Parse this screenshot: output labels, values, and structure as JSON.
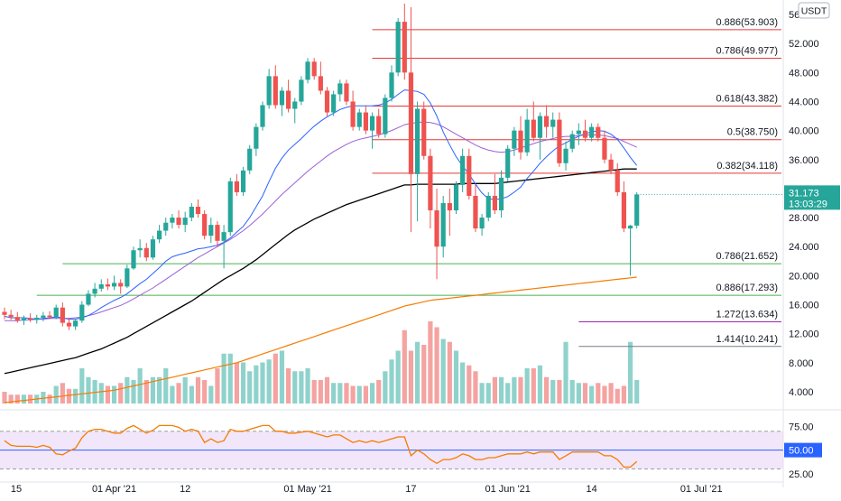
{
  "currency_label": "USDT",
  "colors": {
    "up": "#26a69a",
    "down": "#ef5350",
    "up_vol": "#8fd2cc",
    "down_vol": "#f4a3a1",
    "fib_red": "#e53935",
    "fib_green": "#4caf50",
    "fib_purple": "#9c27b0",
    "fib_gray": "#787b86",
    "ma_fast": "#2962ff",
    "ma_mid": "#9c5fd6",
    "ma_black": "#000000",
    "ma_orange": "#f57c00",
    "rsi_line": "#f57c00",
    "rsi_band": "#e9d5f7",
    "rsi_mid": "#2962ff",
    "price_tag": "#26a69a",
    "rsi_tag": "#2962ff"
  },
  "price_tag": {
    "price": "31.173",
    "countdown": "13:03:29"
  },
  "rsi_tag": "50.00",
  "chart_data": {
    "type": "candlestick",
    "price_axis": {
      "range": [
        2.0,
        58.0
      ],
      "ticks": [
        "56.000",
        "52.000",
        "48.000",
        "44.000",
        "40.000",
        "36.000",
        "32.000",
        "28.000",
        "24.000",
        "20.000",
        "16.000",
        "12.000",
        "8.000",
        "4.000"
      ]
    },
    "rsi_axis": {
      "range": [
        20,
        85
      ],
      "ticks": [
        "75.00",
        "50.00",
        "25.00"
      ],
      "band": [
        30,
        70
      ],
      "mid": 50
    },
    "x_axis": {
      "labels": [
        {
          "text": "15",
          "day": 0
        },
        {
          "text": "01 Apr '21",
          "day": 17
        },
        {
          "text": "12",
          "day": 28
        },
        {
          "text": "01 May '21",
          "day": 47
        },
        {
          "text": "17",
          "day": 63
        },
        {
          "text": "01 Jun '21",
          "day": 78
        },
        {
          "text": "14",
          "day": 91
        },
        {
          "text": "01 Jul '21",
          "day": 108
        }
      ]
    },
    "fib_levels": [
      {
        "label": "0.886(53.903)",
        "value": 53.903,
        "color": "red",
        "from_day": 57
      },
      {
        "label": "0.786(49.977)",
        "value": 49.977,
        "color": "red",
        "from_day": 57
      },
      {
        "label": "0.618(43.382)",
        "value": 43.382,
        "color": "red",
        "from_day": 57
      },
      {
        "label": "0.5(38.750)",
        "value": 38.75,
        "color": "red",
        "from_day": 57
      },
      {
        "label": "0.382(34.118)",
        "value": 34.118,
        "color": "red",
        "from_day": 57
      },
      {
        "label": "0.786(21.652)",
        "value": 21.652,
        "color": "green",
        "from_day": 9
      },
      {
        "label": "0.886(17.293)",
        "value": 17.293,
        "color": "green",
        "from_day": 5
      },
      {
        "label": "1.272(13.634)",
        "value": 13.634,
        "color": "purple",
        "from_day": 89
      },
      {
        "label": "1.414(10.241)",
        "value": 10.241,
        "color": "gray",
        "from_day": 89
      }
    ],
    "candles": [
      [
        15.0,
        15.6,
        14.0,
        14.6
      ],
      [
        14.6,
        15.3,
        13.9,
        14.3
      ],
      [
        14.3,
        15.0,
        13.5,
        13.8
      ],
      [
        13.8,
        14.5,
        13.2,
        14.1
      ],
      [
        14.1,
        14.8,
        13.6,
        13.9
      ],
      [
        13.9,
        14.6,
        13.4,
        14.2
      ],
      [
        14.2,
        15.0,
        13.7,
        14.5
      ],
      [
        14.5,
        15.1,
        14.0,
        14.3
      ],
      [
        14.3,
        16.0,
        14.0,
        15.6
      ],
      [
        15.6,
        16.3,
        13.0,
        13.5
      ],
      [
        13.5,
        14.2,
        12.5,
        13.0
      ],
      [
        13.0,
        14.0,
        12.5,
        13.8
      ],
      [
        13.8,
        16.5,
        13.5,
        16.0
      ],
      [
        16.0,
        18.0,
        15.8,
        17.5
      ],
      [
        17.5,
        19.0,
        17.0,
        18.2
      ],
      [
        18.2,
        19.5,
        17.8,
        18.8
      ],
      [
        18.8,
        19.6,
        18.0,
        18.5
      ],
      [
        18.5,
        20.0,
        18.0,
        19.0
      ],
      [
        19.0,
        19.5,
        17.5,
        18.5
      ],
      [
        18.5,
        21.5,
        18.3,
        21.0
      ],
      [
        21.0,
        24.0,
        20.8,
        23.5
      ],
      [
        23.5,
        25.0,
        22.5,
        23.8
      ],
      [
        23.8,
        24.5,
        22.0,
        22.5
      ],
      [
        22.5,
        25.5,
        22.2,
        25.0
      ],
      [
        25.0,
        27.0,
        24.5,
        26.2
      ],
      [
        26.2,
        28.0,
        25.5,
        27.3
      ],
      [
        27.3,
        28.5,
        26.5,
        28.0
      ],
      [
        28.0,
        29.0,
        26.5,
        27.0
      ],
      [
        27.0,
        28.8,
        26.0,
        28.0
      ],
      [
        28.0,
        30.0,
        27.5,
        29.5
      ],
      [
        29.5,
        30.5,
        28.0,
        28.5
      ],
      [
        28.5,
        29.0,
        25.0,
        25.5
      ],
      [
        25.5,
        28.0,
        24.5,
        27.0
      ],
      [
        27.0,
        27.5,
        24.0,
        24.8
      ],
      [
        24.8,
        27.0,
        21.0,
        26.0
      ],
      [
        26.0,
        33.5,
        25.5,
        33.0
      ],
      [
        33.0,
        34.0,
        31.0,
        31.5
      ],
      [
        31.5,
        35.0,
        31.0,
        34.5
      ],
      [
        34.5,
        38.0,
        34.0,
        37.5
      ],
      [
        37.5,
        41.0,
        36.5,
        40.5
      ],
      [
        40.5,
        44.0,
        40.0,
        43.5
      ],
      [
        43.5,
        48.5,
        43.0,
        47.5
      ],
      [
        47.5,
        49.0,
        43.0,
        43.5
      ],
      [
        43.5,
        46.0,
        42.0,
        45.5
      ],
      [
        45.5,
        47.0,
        42.5,
        43.0
      ],
      [
        43.0,
        44.5,
        41.0,
        44.0
      ],
      [
        44.0,
        47.5,
        43.5,
        47.0
      ],
      [
        47.0,
        50.0,
        46.5,
        49.5
      ],
      [
        49.5,
        50.0,
        47.0,
        47.5
      ],
      [
        47.5,
        49.5,
        45.0,
        45.5
      ],
      [
        45.5,
        46.0,
        42.0,
        42.5
      ],
      [
        42.5,
        45.5,
        42.0,
        45.0
      ],
      [
        45.0,
        47.0,
        44.0,
        46.5
      ],
      [
        46.5,
        47.0,
        43.5,
        44.0
      ],
      [
        44.0,
        45.5,
        40.0,
        40.5
      ],
      [
        40.5,
        43.0,
        40.0,
        42.5
      ],
      [
        42.5,
        43.5,
        39.5,
        40.0
      ],
      [
        40.0,
        42.5,
        37.5,
        42.0
      ],
      [
        42.0,
        43.0,
        39.0,
        39.5
      ],
      [
        39.5,
        45.0,
        39.0,
        44.5
      ],
      [
        44.5,
        49.0,
        44.0,
        48.0
      ],
      [
        48.0,
        55.5,
        47.5,
        55.0
      ],
      [
        55.0,
        57.5,
        47.0,
        48.0
      ],
      [
        48.0,
        57.0,
        26.0,
        34.0
      ],
      [
        34.0,
        44.0,
        27.5,
        43.0
      ],
      [
        43.0,
        44.0,
        36.0,
        36.5
      ],
      [
        36.5,
        37.5,
        26.5,
        29.0
      ],
      [
        29.0,
        32.0,
        19.5,
        24.0
      ],
      [
        24.0,
        31.0,
        22.5,
        30.0
      ],
      [
        30.0,
        32.0,
        25.5,
        29.0
      ],
      [
        29.0,
        33.0,
        28.5,
        32.5
      ],
      [
        32.5,
        37.5,
        31.5,
        36.5
      ],
      [
        36.5,
        37.5,
        30.5,
        31.0
      ],
      [
        31.0,
        32.5,
        26.0,
        26.5
      ],
      [
        26.5,
        28.5,
        25.5,
        28.0
      ],
      [
        28.0,
        31.5,
        27.5,
        31.0
      ],
      [
        31.0,
        34.0,
        28.5,
        29.0
      ],
      [
        29.0,
        34.5,
        28.0,
        33.5
      ],
      [
        33.5,
        38.0,
        33.0,
        37.5
      ],
      [
        37.5,
        40.5,
        36.5,
        40.0
      ],
      [
        40.0,
        42.0,
        36.0,
        37.0
      ],
      [
        37.0,
        43.0,
        36.5,
        41.5
      ],
      [
        41.5,
        44.0,
        38.5,
        39.0
      ],
      [
        39.0,
        42.5,
        36.0,
        42.0
      ],
      [
        42.0,
        43.5,
        39.0,
        40.5
      ],
      [
        40.5,
        42.5,
        39.0,
        41.5
      ],
      [
        41.5,
        42.5,
        35.0,
        35.5
      ],
      [
        35.5,
        38.5,
        34.5,
        37.5
      ],
      [
        37.5,
        40.0,
        37.0,
        39.5
      ],
      [
        39.5,
        41.0,
        38.0,
        40.0
      ],
      [
        40.0,
        41.5,
        38.5,
        39.0
      ],
      [
        39.0,
        41.0,
        38.5,
        40.5
      ],
      [
        40.5,
        41.0,
        38.5,
        39.0
      ],
      [
        39.0,
        40.0,
        35.5,
        36.0
      ],
      [
        36.0,
        36.8,
        34.0,
        34.5
      ],
      [
        34.5,
        35.5,
        31.0,
        31.5
      ],
      [
        31.5,
        33.0,
        26.0,
        26.5
      ],
      [
        26.5,
        27.0,
        20.0,
        26.9
      ],
      [
        26.9,
        31.5,
        26.5,
        31.2
      ]
    ],
    "ma_fast": [
      14.4,
      14.2,
      14.2,
      14.2,
      14.1,
      14.0,
      14.1,
      14.2,
      14.3,
      14.2,
      14.0,
      14.0,
      14.2,
      14.5,
      15.0,
      15.6,
      16.1,
      16.6,
      17.0,
      17.5,
      18.2,
      18.9,
      19.5,
      20.3,
      21.1,
      22.0,
      22.6,
      22.9,
      23.1,
      23.4,
      23.7,
      23.8,
      24.0,
      24.2,
      24.6,
      25.2,
      26.0,
      26.8,
      28.0,
      29.5,
      31.0,
      33.0,
      34.8,
      36.2,
      37.3,
      38.1,
      38.9,
      39.8,
      40.6,
      41.3,
      41.9,
      42.4,
      42.9,
      43.2,
      43.4,
      43.4,
      43.4,
      43.4,
      43.5,
      43.8,
      44.3,
      45.0,
      45.6,
      45.5,
      45.4,
      45.0,
      43.8,
      42.0,
      39.8,
      38.0,
      36.4,
      35.1,
      34.0,
      32.6,
      31.4,
      30.6,
      30.5,
      30.6,
      30.9,
      31.5,
      32.2,
      33.4,
      34.4,
      35.5,
      36.4,
      37.2,
      37.9,
      38.3,
      38.8,
      39.2,
      39.6,
      39.8,
      40.0,
      39.9,
      39.5,
      38.8,
      37.6,
      36.3,
      35.2
    ],
    "ma_mid": [
      13.8,
      13.8,
      13.8,
      13.9,
      13.9,
      14.0,
      14.0,
      14.1,
      14.1,
      14.1,
      14.1,
      14.2,
      14.3,
      14.5,
      14.7,
      15.0,
      15.3,
      15.6,
      15.9,
      16.3,
      16.8,
      17.3,
      17.8,
      18.3,
      18.9,
      19.5,
      20.1,
      20.7,
      21.3,
      21.9,
      22.5,
      23.0,
      23.5,
      24.0,
      24.5,
      25.0,
      25.6,
      26.2,
      26.9,
      27.7,
      28.5,
      29.4,
      30.3,
      31.2,
      32.0,
      32.8,
      33.6,
      34.4,
      35.1,
      35.8,
      36.5,
      37.1,
      37.6,
      38.1,
      38.5,
      38.8,
      39.0,
      39.2,
      39.4,
      39.7,
      40.0,
      40.4,
      40.8,
      41.0,
      41.1,
      41.2,
      41.1,
      40.9,
      40.5,
      40.0,
      39.5,
      39.0,
      38.5,
      38.0,
      37.6,
      37.3,
      37.1,
      37.0,
      37.1,
      37.3,
      37.6,
      37.9,
      38.2,
      38.5,
      38.7,
      38.9,
      39.1,
      39.2,
      39.2,
      39.3,
      39.4,
      39.4,
      39.4,
      39.3,
      39.1,
      38.9,
      38.5,
      38.1,
      37.7
    ],
    "ma_black": [
      6.5,
      6.7,
      6.9,
      7.1,
      7.3,
      7.5,
      7.7,
      7.9,
      8.1,
      8.3,
      8.5,
      8.7,
      9.0,
      9.3,
      9.6,
      9.9,
      10.3,
      10.7,
      11.1,
      11.5,
      12.0,
      12.5,
      13.0,
      13.5,
      14.0,
      14.5,
      15.0,
      15.5,
      16.0,
      16.5,
      17.1,
      17.7,
      18.3,
      18.9,
      19.5,
      20.0,
      20.5,
      21.0,
      21.6,
      22.2,
      22.9,
      23.6,
      24.3,
      25.0,
      25.7,
      26.3,
      26.8,
      27.3,
      27.8,
      28.2,
      28.6,
      29.0,
      29.4,
      29.8,
      30.1,
      30.4,
      30.7,
      31.0,
      31.3,
      31.6,
      31.9,
      32.2,
      32.5,
      32.5,
      32.6,
      32.6,
      32.6,
      32.6,
      32.6,
      32.6,
      32.6,
      32.7,
      32.7,
      32.7,
      32.7,
      32.7,
      32.7,
      32.8,
      32.9,
      33.0,
      33.1,
      33.2,
      33.3,
      33.4,
      33.5,
      33.6,
      33.7,
      33.8,
      33.9,
      34.0,
      34.1,
      34.2,
      34.3,
      34.4,
      34.5,
      34.6,
      34.7,
      34.7,
      34.7
    ],
    "ma_orange": [
      2.5,
      2.6,
      2.7,
      2.8,
      2.9,
      3.0,
      3.1,
      3.2,
      3.3,
      3.4,
      3.5,
      3.6,
      3.7,
      3.8,
      3.9,
      4.0,
      4.1,
      4.2,
      4.4,
      4.6,
      4.8,
      5.0,
      5.2,
      5.4,
      5.6,
      5.8,
      6.0,
      6.2,
      6.4,
      6.6,
      6.8,
      7.0,
      7.2,
      7.4,
      7.6,
      7.8,
      8.0,
      8.3,
      8.6,
      8.9,
      9.2,
      9.5,
      9.8,
      10.1,
      10.4,
      10.7,
      11.0,
      11.3,
      11.6,
      11.9,
      12.2,
      12.5,
      12.8,
      13.1,
      13.4,
      13.7,
      14.0,
      14.3,
      14.6,
      14.9,
      15.2,
      15.5,
      15.8,
      16.0,
      16.2,
      16.4,
      16.6,
      16.7,
      16.8,
      16.9,
      17.0,
      17.1,
      17.2,
      17.3,
      17.4,
      17.5,
      17.6,
      17.7,
      17.8,
      17.9,
      18.0,
      18.1,
      18.2,
      18.3,
      18.4,
      18.5,
      18.6,
      18.7,
      18.8,
      18.9,
      19.0,
      19.1,
      19.2,
      19.3,
      19.4,
      19.5,
      19.6,
      19.7,
      19.8
    ],
    "volume": [
      2.0,
      1.5,
      1.5,
      1.5,
      1.5,
      1.5,
      2.0,
      1.5,
      3.0,
      3.5,
      2.5,
      2.5,
      6.0,
      4.5,
      4.0,
      3.5,
      3.0,
      3.0,
      3.5,
      4.5,
      4.0,
      6.0,
      4.0,
      4.5,
      4.5,
      6.0,
      3.0,
      3.5,
      4.5,
      3.0,
      4.5,
      4.0,
      3.0,
      6.0,
      8.5,
      8.5,
      7.0,
      7.0,
      5.5,
      6.5,
      7.0,
      7.5,
      8.5,
      9.0,
      6.0,
      5.5,
      5.5,
      6.0,
      4.0,
      4.0,
      4.5,
      3.5,
      3.5,
      3.5,
      3.0,
      3.0,
      3.0,
      3.5,
      4.0,
      5.5,
      7.5,
      9.0,
      12.5,
      9.0,
      10.5,
      10.0,
      14.0,
      13.0,
      11.0,
      10.5,
      9.0,
      7.0,
      6.5,
      5.5,
      3.5,
      3.5,
      4.5,
      4.5,
      3.5,
      4.5,
      4.5,
      6.0,
      6.0,
      6.5,
      4.5,
      4.0,
      4.0,
      10.5,
      4.0,
      3.5,
      3.5,
      3.0,
      3.5,
      3.0,
      3.5,
      2.5,
      3.0,
      10.5,
      4.0
    ],
    "rsi": [
      60,
      55,
      54,
      54,
      54,
      53,
      55,
      53,
      46,
      45,
      49,
      52,
      63,
      70,
      72,
      72,
      70,
      68,
      68,
      73,
      76,
      72,
      68,
      71,
      76,
      76,
      76,
      74,
      70,
      72,
      70,
      58,
      62,
      58,
      60,
      72,
      70,
      70,
      72,
      74,
      76,
      76,
      70,
      70,
      68,
      68,
      69,
      70,
      68,
      66,
      64,
      66,
      66,
      62,
      58,
      60,
      58,
      60,
      58,
      60,
      62,
      64,
      64,
      44,
      50,
      46,
      40,
      36,
      40,
      40,
      42,
      46,
      44,
      40,
      40,
      42,
      42,
      44,
      46,
      46,
      46,
      48,
      46,
      48,
      48,
      48,
      40,
      44,
      48,
      48,
      48,
      48,
      48,
      44,
      44,
      40,
      32,
      32,
      38
    ]
  }
}
